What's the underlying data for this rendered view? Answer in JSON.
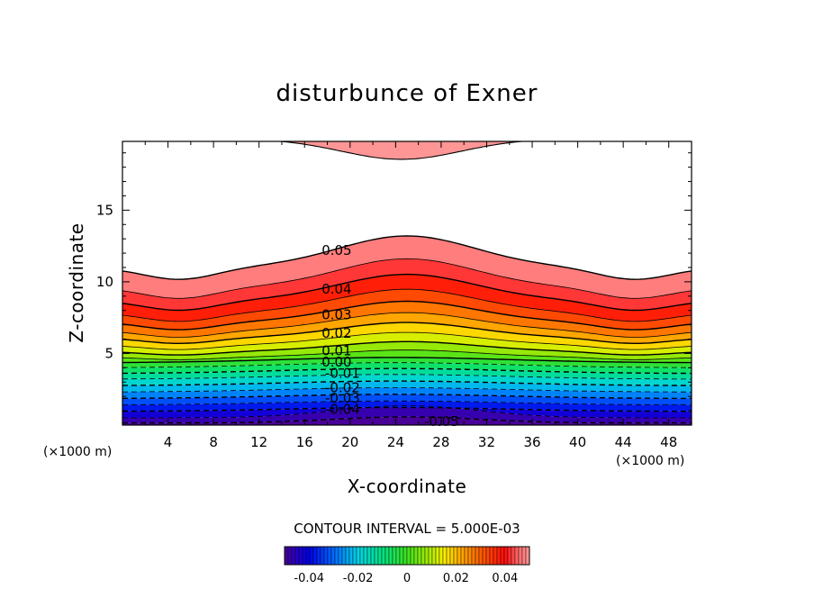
{
  "chart_data": {
    "type": "contour",
    "title": "disturbunce of Exner",
    "xlabel": "X-coordinate",
    "ylabel": "Z-coordinate",
    "x_unit": "(×1000 m)",
    "y_unit": "(×1000 m)",
    "xlim": [
      0,
      50
    ],
    "ylim": [
      0,
      19.8
    ],
    "x_ticks": [
      4,
      8,
      12,
      16,
      20,
      24,
      28,
      32,
      36,
      40,
      44,
      48
    ],
    "y_ticks": [
      5,
      10,
      15
    ],
    "contour_interval_text": "CONTOUR INTERVAL = 5.000E-03",
    "contour_interval": 0.005,
    "levels": [
      -0.05,
      -0.045,
      -0.04,
      -0.035,
      -0.03,
      -0.025,
      -0.02,
      -0.015,
      -0.01,
      -0.005,
      0.0,
      0.005,
      0.01,
      0.015,
      0.02,
      0.025,
      0.03,
      0.035,
      0.04,
      0.045,
      0.05
    ],
    "contour_labels": [
      {
        "text": "0.05",
        "x": 17.5,
        "z": 12.2
      },
      {
        "text": "0.04",
        "x": 17.5,
        "z": 9.5
      },
      {
        "text": "0.03",
        "x": 17.5,
        "z": 7.7
      },
      {
        "text": "0.02",
        "x": 17.5,
        "z": 6.4
      },
      {
        "text": "0.01",
        "x": 17.5,
        "z": 5.2
      },
      {
        "text": "0.00",
        "x": 17.5,
        "z": 4.4
      },
      {
        "text": "-0.01",
        "x": 17.8,
        "z": 3.6
      },
      {
        "text": "-0.02",
        "x": 17.8,
        "z": 2.6
      },
      {
        "text": "-0.03",
        "x": 17.8,
        "z": 1.9
      },
      {
        "text": "-0.04",
        "x": 17.8,
        "z": 1.1
      },
      {
        "text": "-0.05",
        "x": 26.5,
        "z": 0.25
      }
    ],
    "colorbar": {
      "min": -0.05,
      "max": 0.05,
      "ticks": [
        -0.04,
        -0.02,
        0,
        0.02,
        0.04
      ],
      "tick_labels": [
        "-0.04",
        "-0.02",
        "0",
        "0.02",
        "0.04"
      ]
    },
    "grid": false
  }
}
